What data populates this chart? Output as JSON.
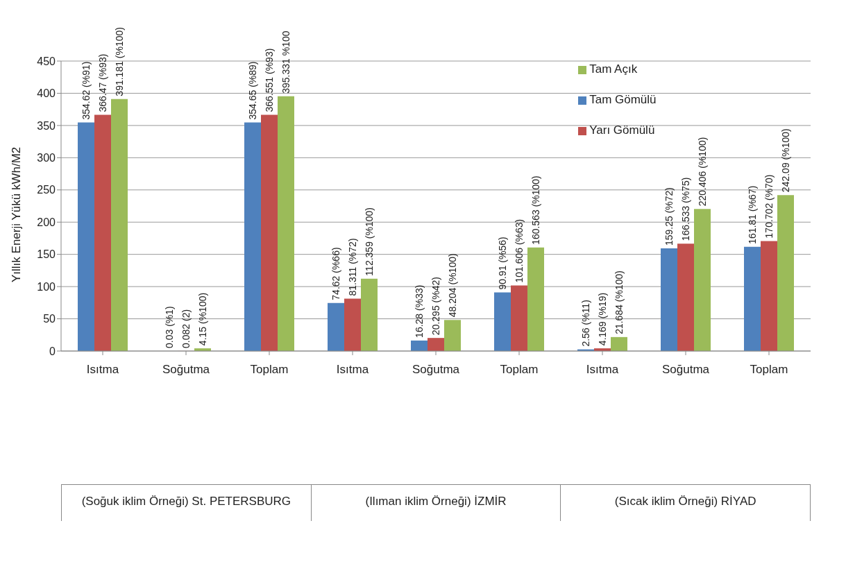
{
  "chart_data": {
    "type": "bar",
    "ylabel": "Yıllık Enerji Yükü kWh/M2",
    "categories": [
      "Isıtma",
      "Soğutma",
      "Toplam",
      "Isıtma",
      "Soğutma",
      "Toplam",
      "Isıtma",
      "Soğutma",
      "Toplam"
    ],
    "annotations": [
      "(Soğuk iklim Örneği) St. PETERSBURG",
      "(Ilıman iklim Örneği) İZMİR",
      "(Sıcak iklim Örneği) RİYAD"
    ],
    "series": [
      {
        "name": "Tam Gömülü",
        "color": "#4f81bd",
        "values": [
          354.62,
          0.03,
          354.65,
          74.62,
          16.28,
          90.91,
          2.56,
          159.25,
          161.81
        ],
        "value_labels": [
          "354.62 (%91)",
          "0.03 (%1)",
          "354.65 (%89)",
          "74.62 (%66)",
          "16.28 (%33)",
          "90.91 (%56)",
          "2.56 (%11)",
          "159.25 (%72)",
          "161.81 (%67)"
        ]
      },
      {
        "name": "Yarı Gömülü",
        "color": "#c0504d",
        "values": [
          366.47,
          0.082,
          366.551,
          81.311,
          20.295,
          101.606,
          4.169,
          166.533,
          170.702
        ],
        "value_labels": [
          "366.47 (%93)",
          "0.082 (2)",
          "366.551 (%93)",
          "81.311 (%72)",
          "20.295 (%42)",
          "101.606 (%63)",
          "4.169 (%19)",
          "166.533 (%75)",
          "170.702 (%70)"
        ]
      },
      {
        "name": "Tam Açık",
        "color": "#9bbb59",
        "values": [
          391.181,
          4.15,
          395.331,
          112.359,
          48.204,
          160.563,
          21.684,
          220.406,
          242.09
        ],
        "value_labels": [
          "391.181 (%100)",
          "4.15 (%100)",
          "395.331 %100",
          "112.359 (%100)",
          "48.204 (%100)",
          "160.563 (%100)",
          "21.684 (%100)",
          "220.406 (%100)",
          "242.09 (%100)"
        ]
      }
    ],
    "ylim": [
      0,
      450
    ],
    "yticks": [
      0,
      50,
      100,
      150,
      200,
      250,
      300,
      350,
      400,
      450
    ],
    "grid": "y",
    "legend": "top right"
  }
}
